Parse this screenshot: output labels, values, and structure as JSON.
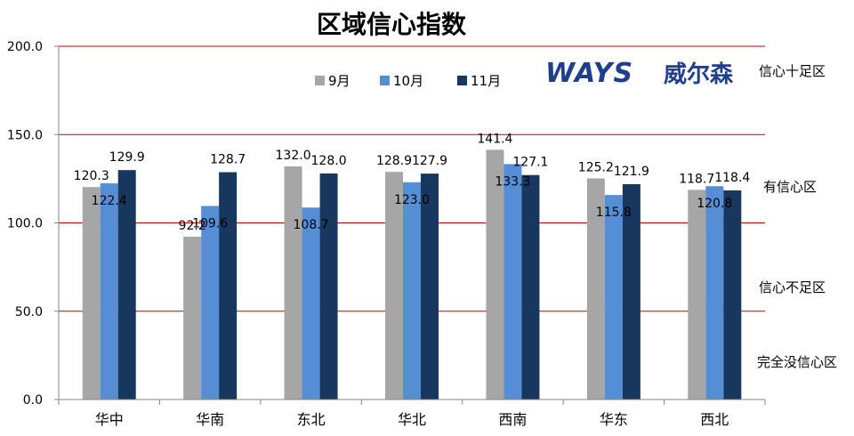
{
  "chart_data": {
    "type": "bar",
    "title": "区域信心指数",
    "categories": [
      "华中",
      "华南",
      "东北",
      "华北",
      "西南",
      "华东",
      "西北"
    ],
    "series": [
      {
        "name": "9月",
        "color": "#a6a6a6",
        "values": [
          120.3,
          92.2,
          132.0,
          128.9,
          141.4,
          125.2,
          118.7
        ]
      },
      {
        "name": "10月",
        "color": "#558ed5",
        "values": [
          122.4,
          109.6,
          108.7,
          123.0,
          133.3,
          115.8,
          120.8
        ]
      },
      {
        "name": "11月",
        "color": "#17375e",
        "values": [
          129.9,
          128.7,
          128.0,
          127.9,
          127.1,
          121.9,
          118.4
        ]
      }
    ],
    "ylim": [
      0,
      200
    ],
    "yticks": [
      "0.0",
      "50.0",
      "100.0",
      "150.0",
      "200.0"
    ],
    "gridline_color": "#c00000",
    "legend_position": "top",
    "zones": [
      "信心十足区",
      "有信心区",
      "信心不足区",
      "完全没信心区"
    ],
    "logo": {
      "text_latin": "WAYS",
      "text_cn": "威尔森",
      "color": "#1f3e8c"
    }
  }
}
